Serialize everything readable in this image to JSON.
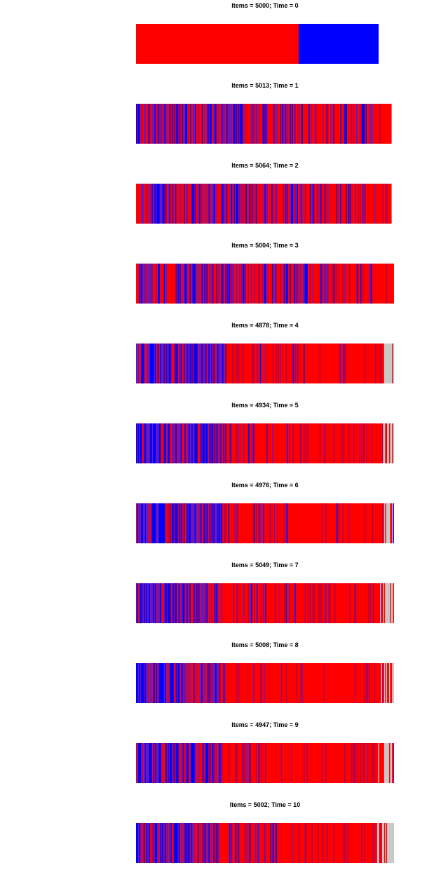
{
  "chart_data": {
    "type": "heatmap",
    "description_note": "",
    "colors": {
      "majority_a": "#ff0000",
      "majority_b": "#0000ff",
      "mixed": "#6a18b8",
      "empty": "#c8c8c8"
    },
    "panels": [
      {
        "title": "Items = 5000; Time = 0",
        "items": 5000,
        "time": 0,
        "blue_fraction": 0.33
      },
      {
        "title": "Items = 5013; Time = 1",
        "items": 5013,
        "time": 1,
        "blue_fraction": 0.38
      },
      {
        "title": "Items = 5064; Time = 2",
        "items": 5064,
        "time": 2,
        "blue_fraction": 0.42
      },
      {
        "title": "Items = 5004; Time = 3",
        "items": 5004,
        "time": 3,
        "blue_fraction": 0.44
      },
      {
        "title": "Items = 4878; Time = 4",
        "items": 4878,
        "time": 4,
        "blue_fraction": 0.42
      },
      {
        "title": "Items = 4934; Time = 5",
        "items": 4934,
        "time": 5,
        "blue_fraction": 0.4
      },
      {
        "title": "Items = 4976; Time = 6",
        "items": 4976,
        "time": 6,
        "blue_fraction": 0.38
      },
      {
        "title": "Items = 5049; Time = 7",
        "items": 5049,
        "time": 7,
        "blue_fraction": 0.36
      },
      {
        "title": "Items = 5008; Time = 8",
        "items": 5008,
        "time": 8,
        "blue_fraction": 0.36
      },
      {
        "title": "Items = 4947; Time = 9",
        "items": 4947,
        "time": 9,
        "blue_fraction": 0.34
      },
      {
        "title": "Items = 5002; Time = 10",
        "items": 5002,
        "time": 10,
        "blue_fraction": 0.34
      }
    ]
  }
}
